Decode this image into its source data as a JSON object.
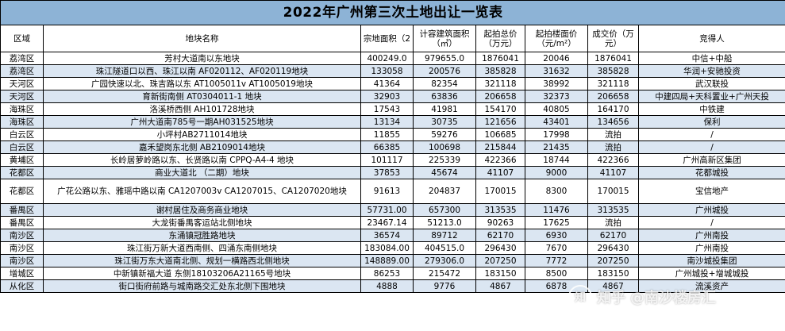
{
  "title": "2022年广州第三次土地出让一览表",
  "headers": {
    "district": "区域",
    "name": "地块名称",
    "site_area": "宗地面积（2",
    "gfa": "计容建筑面积（㎡）",
    "start_total": "起拍总价（万元）",
    "start_floor": "起拍楼面价（元/m²）",
    "deal": "成交价（万元）",
    "winner": "竞得人"
  },
  "rows": [
    {
      "district": "荔湾区",
      "name": "芳村大道南以东地块",
      "area": "400249.0",
      "gfa": "979655.0",
      "start_total": "1876041",
      "floor": "20046",
      "deal": "1876041",
      "winner": "中信+中船"
    },
    {
      "district": "荔湾区",
      "name": "珠江隧道口以西、珠江以南 AF020112、AF020119地块",
      "area": "133058",
      "gfa": "200576",
      "start_total": "385828",
      "floor": "31632",
      "deal": "385828",
      "winner": "华润+安驰投资"
    },
    {
      "district": "天河区",
      "name": "广园快速以北、珠吉路以东 AT1005011v AT1005019地块",
      "area": "41364",
      "gfa": "82354",
      "start_total": "321118",
      "floor": "38992",
      "deal": "321118",
      "winner": "武汉联投"
    },
    {
      "district": "天河区",
      "name": "育新街南侧 AT0304011-1 地块",
      "area": "32903",
      "gfa": "63836",
      "start_total": "206658",
      "floor": "32373",
      "deal": "206658",
      "winner": "中建四局+天科置业+广州天投"
    },
    {
      "district": "海珠区",
      "name": "洛溪桥西侧 AH101728地块",
      "area": "17543",
      "gfa": "41981",
      "start_total": "154170",
      "floor": "40805",
      "deal": "164170",
      "winner": "中铁建"
    },
    {
      "district": "海珠区",
      "name": "广州大道南785号一期AH031525地块",
      "area": "13134",
      "gfa": "30735",
      "start_total": "121656",
      "floor": "43401",
      "deal": "134656",
      "winner": "保利"
    },
    {
      "district": "白云区",
      "name": "小坪村AB2711014地块",
      "area": "11855",
      "gfa": "59276",
      "start_total": "106685",
      "floor": "17998",
      "deal": "流拍",
      "winner": "/"
    },
    {
      "district": "白云区",
      "name": "嘉禾望岗东北侧 AB2109014地块",
      "area": "66385",
      "gfa": "100698",
      "start_total": "215844",
      "floor": "21435",
      "deal": "流拍",
      "winner": "/"
    },
    {
      "district": "黄埔区",
      "name": "长岭居萝岭路以东、长贤路以南 CPPQ-A4-4 地块",
      "area": "101117",
      "gfa": "225339",
      "start_total": "422366",
      "floor": "18744",
      "deal": "422366",
      "winner": "广州高新区集团"
    },
    {
      "district": "花都区",
      "name": "商业大道北 （二期）地块",
      "area": "37853",
      "gfa": "45674",
      "start_total": "41107",
      "floor": "9000",
      "deal": "41107",
      "winner": "花都城投"
    },
    {
      "district": "花都区",
      "name": "广花公路以东、雅瑶中路以南 CA1207003v CA1207015、CA1207020地块",
      "area": "91613",
      "gfa": "204837",
      "start_total": "170015",
      "floor": "8300",
      "deal": "170015",
      "winner": "宝信地产",
      "tall": true
    },
    {
      "district": "番禺区",
      "name": "谢村居住及商务商业地块",
      "area": "57731.00",
      "gfa": "657300",
      "start_total": "313535",
      "floor": "11476",
      "deal": "313535",
      "winner": "广州城投"
    },
    {
      "district": "番禺区",
      "name": "大龙街番禺客运站北侧地块",
      "area": "23467.14",
      "gfa": "51213.0",
      "start_total": "90263",
      "floor": "17625",
      "deal": "流拍",
      "winner": "/"
    },
    {
      "district": "南沙区",
      "name": "东涌镇冠胜路地块",
      "area": "36574",
      "gfa": "89712",
      "start_total": "62170",
      "floor": "6930",
      "deal": "62170",
      "winner": "广州南投"
    },
    {
      "district": "南沙区",
      "name": "珠江街万新大道西南侧、四涌东南侧地块",
      "area": "183084.00",
      "gfa": "404515.0",
      "start_total": "296430",
      "floor": "7670",
      "deal": "296430",
      "winner": "广州南投"
    },
    {
      "district": "南沙区",
      "name": "珠江街万东大道南北侧、规划一横路西北侧地块",
      "area": "148889.00",
      "gfa": "279306.0",
      "start_total": "207250",
      "floor": "7772",
      "deal": "207250",
      "winner": "南沙城投集团"
    },
    {
      "district": "增城区",
      "name": "中新镇新福大道 东侧18103206A21165号地块",
      "area": "86253",
      "gfa": "215472",
      "start_total": "183150",
      "floor": "8500",
      "deal": "183150",
      "winner": "广州城投+增城城投"
    },
    {
      "district": "从化区",
      "name": "街口街府前路与城南路交汇处东北侧下围地块",
      "area": "4888",
      "gfa": "9776",
      "start_total": "4867",
      "floor": "6878",
      "deal": "4867",
      "winner": "流溪资产"
    }
  ],
  "watermark": {
    "brand": "知乎",
    "handle": "@南沙楼房汇"
  }
}
